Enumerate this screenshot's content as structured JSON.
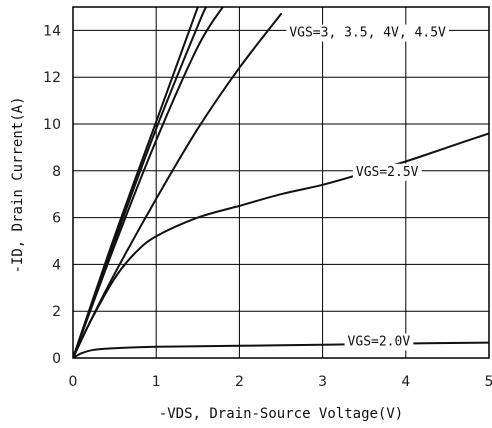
{
  "chart_data": {
    "type": "line",
    "xlabel": "-VDS, Drain-Source Voltage(V)",
    "ylabel": "-ID, Drain Current(A)",
    "xlim": [
      0,
      5
    ],
    "ylim": [
      0,
      15
    ],
    "x_ticks": [
      "0",
      "1",
      "2",
      "3",
      "4",
      "5"
    ],
    "y_ticks": [
      "0",
      "2",
      "4",
      "6",
      "8",
      "10",
      "12",
      "14"
    ],
    "grid": "horizontal",
    "series": [
      {
        "name": "VGS=3",
        "x": [
          0,
          0.5,
          1.0,
          1.5
        ],
        "y": [
          0,
          5.2,
          10.1,
          15
        ]
      },
      {
        "name": "3.5",
        "x": [
          0,
          0.5,
          1.0,
          1.5,
          1.6
        ],
        "y": [
          0,
          5.0,
          9.8,
          14.2,
          15
        ]
      },
      {
        "name": "4V",
        "x": [
          0,
          0.5,
          1.0,
          1.5,
          1.8
        ],
        "y": [
          0,
          4.8,
          9.3,
          13.3,
          15
        ]
      },
      {
        "name": "4.5V",
        "x": [
          0,
          0.2,
          0.5,
          1.0,
          1.5,
          2.0,
          2.5
        ],
        "y": [
          0,
          1.5,
          3.6,
          6.8,
          9.8,
          12.4,
          14.7
        ]
      },
      {
        "name": "VGS=2.5V",
        "x": [
          0,
          0.2,
          0.5,
          0.75,
          1.0,
          1.5,
          2.0,
          2.5,
          3.0,
          3.5,
          4.0,
          4.5,
          5.0
        ],
        "y": [
          0,
          1.5,
          3.4,
          4.5,
          5.2,
          6.0,
          6.5,
          7.0,
          7.4,
          7.9,
          8.4,
          9.0,
          9.6
        ]
      },
      {
        "name": "VGS=2.0V",
        "x": [
          0,
          0.1,
          0.25,
          0.5,
          1.0,
          2.0,
          3.0,
          4.0,
          5.0
        ],
        "y": [
          0,
          0.2,
          0.35,
          0.42,
          0.48,
          0.52,
          0.57,
          0.62,
          0.66
        ]
      }
    ],
    "annotations": [
      {
        "text": "VGS=3, 3.5, 4V, 4.5V",
        "x": 2.6,
        "y": 13.95
      },
      {
        "text": "VGS=2.5V",
        "x": 3.4,
        "y": 8.0
      },
      {
        "text": "VGS=2.0V",
        "x": 3.3,
        "y": 0.75
      }
    ]
  }
}
